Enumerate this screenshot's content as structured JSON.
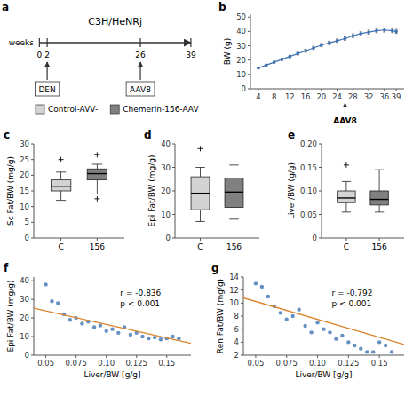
{
  "chart_data": [
    {
      "type": "timeline",
      "panel": "a",
      "title": "C3H/HeNRj",
      "xlabel": "weeks",
      "xlim": [
        -1,
        42
      ],
      "xticks": [
        0,
        2,
        26,
        39
      ],
      "annotations": [
        {
          "x": 2,
          "text": "DEN"
        },
        {
          "x": 26,
          "text": "AAV8"
        }
      ],
      "series": [
        {
          "name": "Control-AVV-",
          "color": "#d3d3d3"
        },
        {
          "name": "Chemerin-156-AAV",
          "color": "#808080"
        }
      ],
      "legend": "bottom"
    },
    {
      "type": "line",
      "panel": "b",
      "ylabel": "BW (g)",
      "xlim": [
        2,
        41
      ],
      "ylim": [
        0,
        52
      ],
      "xticks": [
        4,
        8,
        12,
        16,
        20,
        24,
        28,
        32,
        36,
        39
      ],
      "yticks": [
        0,
        10,
        20,
        30,
        40,
        50
      ],
      "marker": "circle",
      "series": [
        {
          "x": [
            4,
            6,
            8,
            10,
            12,
            14,
            16,
            18,
            20,
            22,
            24,
            26,
            28,
            30,
            32,
            34,
            36,
            38,
            39
          ],
          "values": [
            14.5,
            16.5,
            18.5,
            20.5,
            22.5,
            24.5,
            26.5,
            28.5,
            30.5,
            32.0,
            33.5,
            35.0,
            37.0,
            38.5,
            39.5,
            40.5,
            41.0,
            40.5,
            40.0
          ],
          "errors": [
            0.5,
            0.6,
            0.7,
            0.8,
            0.9,
            1.0,
            1.1,
            1.1,
            1.1,
            1.2,
            1.2,
            1.2,
            1.3,
            1.3,
            1.4,
            1.4,
            1.4,
            1.4,
            1.4
          ]
        }
      ],
      "annotations": [
        {
          "x": 26,
          "text": "AAV8"
        }
      ]
    },
    {
      "type": "box",
      "panel": "c",
      "ylabel": "Sc Fat/BW (mg/g)",
      "ylim": [
        0,
        30
      ],
      "yticks": [
        0,
        5,
        10,
        15,
        20,
        25,
        30
      ],
      "categories": [
        "C",
        "156"
      ],
      "colors": [
        "#d3d3d3",
        "#808080"
      ],
      "boxes": [
        {
          "q1": 15.0,
          "median": 16.5,
          "q3": 18.5,
          "whislo": 12.0,
          "whishi": 21.0,
          "fliers": [
            25.0
          ]
        },
        {
          "q1": 18.5,
          "median": 20.5,
          "q3": 22.0,
          "whislo": 14.0,
          "whishi": 23.5,
          "fliers": [
            26.5,
            12.5
          ]
        }
      ]
    },
    {
      "type": "box",
      "panel": "d",
      "ylabel": "Epi Fat/BW (mg/g)",
      "ylim": [
        0,
        40
      ],
      "yticks": [
        0,
        10,
        20,
        30,
        40
      ],
      "categories": [
        "C",
        "156"
      ],
      "colors": [
        "#d3d3d3",
        "#808080"
      ],
      "boxes": [
        {
          "q1": 12.0,
          "median": 19.0,
          "q3": 26.0,
          "whislo": 7.0,
          "whishi": 30.0,
          "fliers": [
            38.0
          ]
        },
        {
          "q1": 13.0,
          "median": 19.5,
          "q3": 25.5,
          "whislo": 8.0,
          "whishi": 31.0,
          "fliers": []
        }
      ]
    },
    {
      "type": "box",
      "panel": "e",
      "ylabel": "Liver/BW (g/g)",
      "ylim": [
        0,
        0.2
      ],
      "yticks": [
        0,
        0.05,
        {
          "value": 0.1,
          "label": "0.10"
        },
        0.15,
        {
          "value": 0.2,
          "label": "0.20"
        }
      ],
      "categories": [
        "C",
        "156"
      ],
      "colors": [
        "#d3d3d3",
        "#808080"
      ],
      "boxes": [
        {
          "q1": 0.075,
          "median": 0.085,
          "q3": 0.1,
          "whislo": 0.055,
          "whishi": 0.12,
          "fliers": [
            0.155
          ]
        },
        {
          "q1": 0.07,
          "median": 0.082,
          "q3": 0.1,
          "whislo": 0.055,
          "whishi": 0.145,
          "fliers": []
        }
      ]
    },
    {
      "type": "scatter",
      "panel": "f",
      "xlabel": "Liver/BW [g/g]",
      "ylabel": "Epi Fat/BW (mg/g)",
      "xlim": [
        0.04,
        0.17
      ],
      "ylim": [
        0,
        42
      ],
      "xticks": [
        0.05,
        0.075,
        {
          "value": 0.1,
          "label": "0.10"
        },
        0.125,
        0.15
      ],
      "yticks": [
        0,
        10,
        20,
        30,
        40
      ],
      "series": [
        {
          "type": "scatter",
          "x": [
            0.05,
            0.055,
            0.06,
            0.065,
            0.07,
            0.075,
            0.08,
            0.085,
            0.09,
            0.095,
            0.1,
            0.105,
            0.11,
            0.115,
            0.12,
            0.125,
            0.13,
            0.135,
            0.14,
            0.145,
            0.15,
            0.155,
            0.16
          ],
          "values": [
            38.0,
            29.0,
            28.0,
            22.0,
            19.0,
            20.0,
            17.0,
            18.0,
            15.0,
            16.0,
            13.0,
            14.0,
            12.0,
            15.0,
            11.0,
            12.0,
            10.0,
            9.0,
            9.5,
            8.5,
            9.0,
            10.0,
            9.0
          ]
        },
        {
          "type": "line",
          "x": [
            0.04,
            0.17
          ],
          "values": [
            25.2,
            6.35
          ]
        }
      ],
      "annotations": [
        "r = -0.836",
        "p < 0.001"
      ]
    },
    {
      "type": "scatter",
      "panel": "g",
      "xlabel": "Liver/BW [g/g]",
      "ylabel": "Ren Fat/BW (mg/g)",
      "xlim": [
        0.04,
        0.17
      ],
      "ylim": [
        2,
        14
      ],
      "xticks": [
        0.05,
        0.075,
        {
          "value": 0.1,
          "label": "0.10"
        },
        0.125,
        0.15
      ],
      "yticks": [
        2,
        4,
        6,
        8,
        10,
        12,
        14
      ],
      "series": [
        {
          "type": "scatter",
          "x": [
            0.05,
            0.055,
            0.06,
            0.065,
            0.07,
            0.075,
            0.08,
            0.085,
            0.09,
            0.095,
            0.1,
            0.105,
            0.11,
            0.115,
            0.12,
            0.125,
            0.13,
            0.135,
            0.14,
            0.145,
            0.15,
            0.155,
            0.16
          ],
          "values": [
            13.0,
            12.5,
            11.0,
            9.5,
            8.5,
            7.5,
            8.0,
            9.0,
            6.5,
            5.5,
            7.0,
            6.0,
            5.5,
            4.5,
            5.0,
            4.0,
            3.5,
            3.0,
            2.5,
            2.5,
            4.0,
            3.5,
            2.5
          ]
        },
        {
          "type": "line",
          "x": [
            0.04,
            0.17
          ],
          "values": [
            10.8,
            3.65
          ]
        }
      ],
      "annotations": [
        "r = -0.792",
        "p < 0.001"
      ]
    }
  ]
}
